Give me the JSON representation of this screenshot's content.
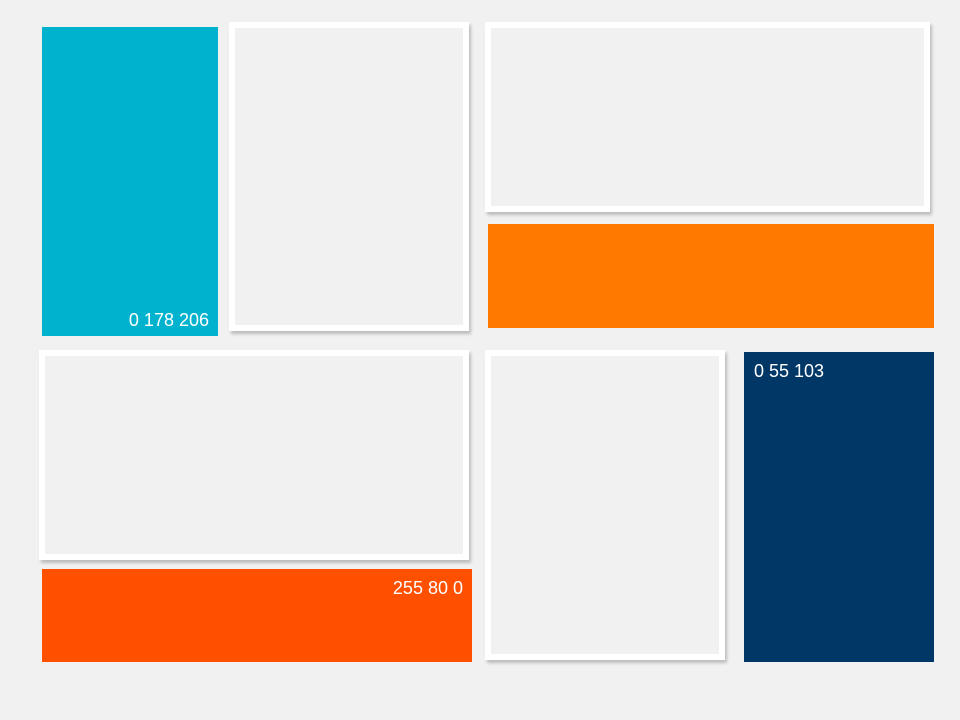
{
  "swatches": {
    "cyan": {
      "color": "#00b2ce",
      "label": "0 178 206"
    },
    "orange": {
      "color": "#ff7800",
      "label": ""
    },
    "red_orange": {
      "color": "#ff5000",
      "label": "255 80 0"
    },
    "navy": {
      "color": "#003767",
      "label": "0 55 103"
    }
  },
  "frame_color": "#ffffff",
  "background_color": "#f1f1f1"
}
